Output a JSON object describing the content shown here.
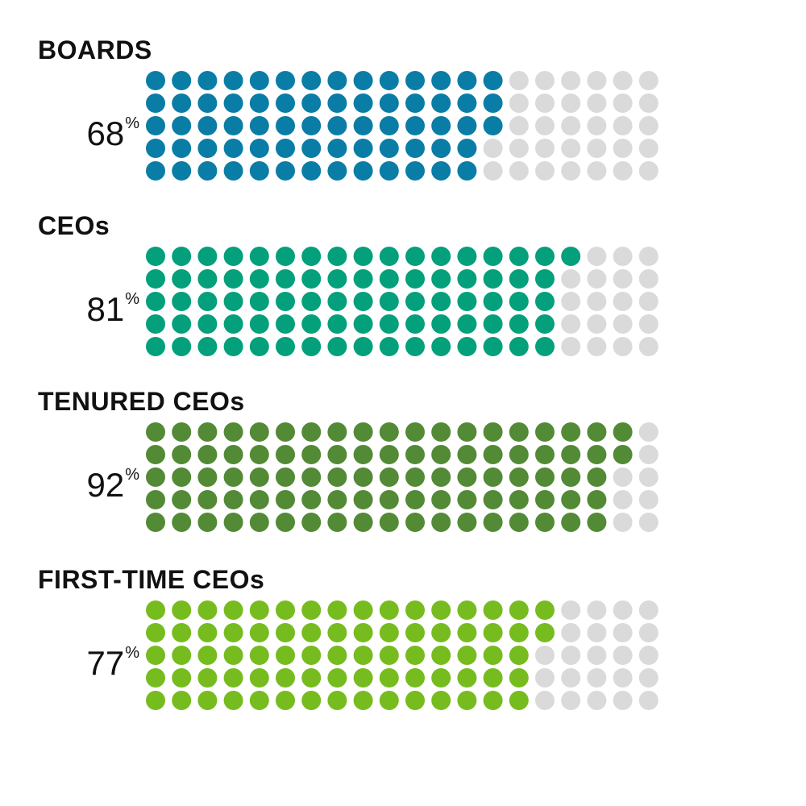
{
  "chart_data": [
    {
      "type": "waffle",
      "title": "BOARDS",
      "value": 68,
      "label": "68",
      "unit": "%",
      "total_dots": 100,
      "rows": 5,
      "columns": 20,
      "fill_order": "column-major, top-to-bottom, left-to-right",
      "color": "#0A7DA6",
      "empty_color": "#DADADA"
    },
    {
      "type": "waffle",
      "title": "CEOs",
      "value": 81,
      "label": "81",
      "unit": "%",
      "total_dots": 100,
      "rows": 5,
      "columns": 20,
      "fill_order": "column-major, top-to-bottom, left-to-right",
      "color": "#03A07B",
      "empty_color": "#DADADA"
    },
    {
      "type": "waffle",
      "title": "TENURED CEOs",
      "value": 92,
      "label": "92",
      "unit": "%",
      "total_dots": 100,
      "rows": 5,
      "columns": 20,
      "fill_order": "column-major, top-to-bottom, left-to-right",
      "color": "#538A35",
      "empty_color": "#DADADA"
    },
    {
      "type": "waffle",
      "title": "FIRST-TIME CEOs",
      "value": 77,
      "label": "77",
      "unit": "%",
      "total_dots": 100,
      "rows": 5,
      "columns": 20,
      "fill_order": "column-major, top-to-bottom, left-to-right",
      "color": "#77BC1F",
      "empty_color": "#DADADA"
    }
  ]
}
